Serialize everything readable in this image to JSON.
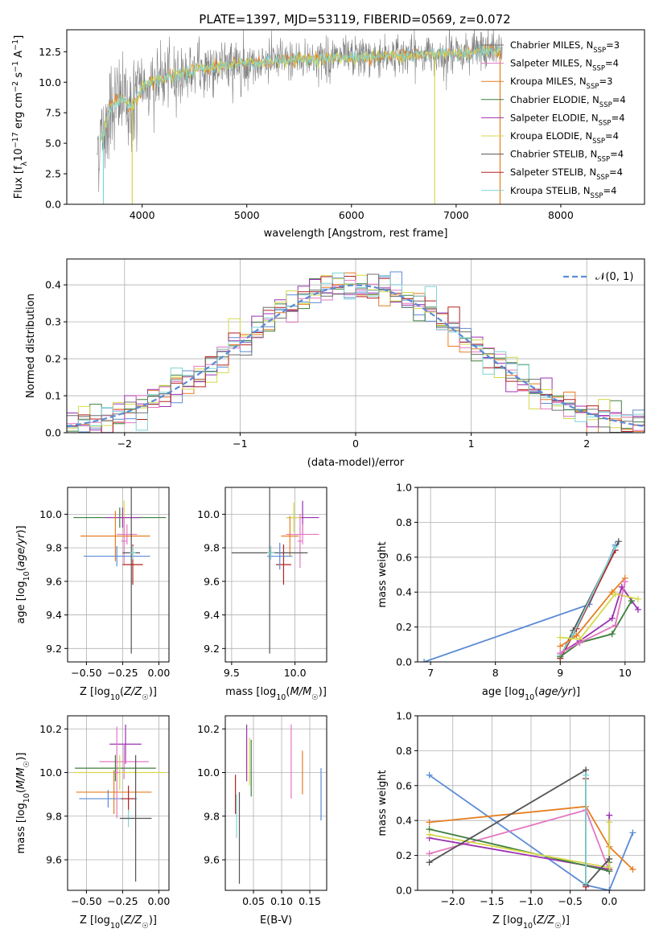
{
  "figure": {
    "title": "PLATE=1397, MJD=53119, FIBERID=0569, z=0.072"
  },
  "series_colors": [
    "#6f6f6f",
    "#e377c2",
    "#e67e22",
    "#3f7f3f",
    "#9b30b0",
    "#d4d94a",
    "#555555",
    "#b22222",
    "#7fd4d4",
    "#5b8bd6"
  ],
  "chart_data": [
    {
      "id": "spectrum",
      "type": "line",
      "xlabel": "wavelength [Angstrom, rest frame]",
      "ylabel": "Flux [f_λ 10^-17 erg cm^-2 s^-1 A^-1]",
      "xlim": [
        3280,
        8800
      ],
      "ylim": [
        0,
        14.3
      ],
      "xticks": [
        4000,
        5000,
        6000,
        7000,
        8000
      ],
      "yticks": [
        0.0,
        2.5,
        5.0,
        7.5,
        10.0,
        12.5
      ],
      "legend": [
        {
          "label": "Chabrier MILES, N_SSP=3",
          "color": "#6f6f6f"
        },
        {
          "label": "Salpeter MILES, N_SSP=4",
          "color": "#e377c2"
        },
        {
          "label": "Kroupa MILES, N_SSP=3",
          "color": "#e67e22"
        },
        {
          "label": "Chabrier ELODIE, N_SSP=4",
          "color": "#3f7f3f"
        },
        {
          "label": "Salpeter ELODIE, N_SSP=4",
          "color": "#9b30b0"
        },
        {
          "label": "Kroupa ELODIE, N_SSP=4",
          "color": "#d4d94a"
        },
        {
          "label": "Chabrier STELIB, N_SSP=4",
          "color": "#555555"
        },
        {
          "label": "Salpeter STELIB, N_SSP=4",
          "color": "#b22222"
        },
        {
          "label": "Kroupa STELIB, N_SSP=4",
          "color": "#7fd4d4"
        }
      ],
      "legend_position": "upper right",
      "observed_trend": {
        "x": [
          3580,
          3650,
          3700,
          3800,
          3900,
          3950,
          4000,
          4100,
          4300,
          4500,
          4800,
          5200,
          5600,
          6000,
          6400,
          6800,
          7200,
          7420
        ],
        "y": [
          4.8,
          6.2,
          8.2,
          8.6,
          7.9,
          8.7,
          9.6,
          10.0,
          10.5,
          11.0,
          11.4,
          11.7,
          11.9,
          12.0,
          12.2,
          12.3,
          12.5,
          12.6
        ]
      },
      "dips": [
        {
          "x": 3630,
          "y": 0.0,
          "color": "#7fd4d4"
        },
        {
          "x": 3905,
          "y": 0.0,
          "color": "#d4d94a"
        },
        {
          "x": 6795,
          "y": 0.0,
          "color": "#d4d94a"
        },
        {
          "x": 7420,
          "y": 0.0,
          "color": "#e67e22"
        }
      ]
    },
    {
      "id": "residual-histogram",
      "type": "bar",
      "xlabel": "(data-model)/error",
      "ylabel": "Normed distribution",
      "xlim": [
        -2.5,
        2.5
      ],
      "ylim": [
        0,
        0.47
      ],
      "xticks": [
        -2,
        -1,
        0,
        1,
        2
      ],
      "yticks": [
        0.0,
        0.1,
        0.2,
        0.3,
        0.4
      ],
      "grid": true,
      "bin_width": 0.1,
      "legend": [
        {
          "label": "𝒩(0, 1)",
          "color": "#5b8bd6",
          "style": "dashed"
        }
      ],
      "legend_position": "upper right"
    },
    {
      "id": "age-vs-Z",
      "type": "scatter",
      "xlabel": "Z [log10(Z/Z☉)]",
      "ylabel": "age [log10(age/yr)]",
      "xlim": [
        -0.63,
        0.07
      ],
      "ylim": [
        9.12,
        10.16
      ],
      "xticks": [
        -0.5,
        -0.25,
        0.0
      ],
      "xticklabels": [
        "−0.50",
        "−0.25",
        "0.00"
      ],
      "yticks": [
        9.2,
        9.4,
        9.6,
        9.8,
        10.0
      ],
      "grid": true,
      "points": [
        {
          "x": -0.27,
          "y": 9.98,
          "xerr": 0.32,
          "yerr": 0.06,
          "color": "#3f7f3f"
        },
        {
          "x": -0.24,
          "y": 9.98,
          "xerr": 0.07,
          "yerr": 0.1,
          "color": "#d4d94a"
        },
        {
          "x": -0.25,
          "y": 9.98,
          "xerr": 0.12,
          "yerr": 0.06,
          "color": "#9b30b0"
        },
        {
          "x": -0.22,
          "y": 9.88,
          "xerr": 0.07,
          "yerr": 0.06,
          "color": "#e377c2"
        },
        {
          "x": -0.3,
          "y": 9.87,
          "xerr": 0.24,
          "yerr": 0.15,
          "color": "#e67e22"
        },
        {
          "x": -0.24,
          "y": 9.84,
          "xerr": 0.02,
          "yerr": 0.14,
          "color": "#e377c2"
        },
        {
          "x": -0.29,
          "y": 9.75,
          "xerr": 0.23,
          "yerr": 0.06,
          "color": "#5b8bd6"
        },
        {
          "x": -0.19,
          "y": 9.77,
          "xerr": 0.06,
          "yerr": 0.6,
          "color": "#555555"
        },
        {
          "x": -0.18,
          "y": 9.7,
          "xerr": 0.07,
          "yerr": 0.12,
          "color": "#b22222"
        },
        {
          "x": -0.18,
          "y": 9.77,
          "xerr": 0.02,
          "yerr": 0.04,
          "color": "#7fd4d4"
        }
      ]
    },
    {
      "id": "age-vs-mass",
      "type": "scatter",
      "xlabel": "mass [log10(M/M☉)]",
      "ylabel": "",
      "xlim": [
        9.45,
        10.25
      ],
      "ylim": [
        9.12,
        10.16
      ],
      "xticks": [
        9.5,
        10.0
      ],
      "xticklabels": [
        "9.5",
        "10.0"
      ],
      "yticks": [
        9.2,
        9.4,
        9.6,
        9.8,
        10.0
      ],
      "grid": true,
      "points": [
        {
          "x": 10.06,
          "y": 9.98,
          "xerr": 0.13,
          "yerr": 0.1,
          "color": "#9b30b0"
        },
        {
          "x": 9.99,
          "y": 9.98,
          "xerr": 0.06,
          "yerr": 0.09,
          "color": "#d4d94a"
        },
        {
          "x": 10.06,
          "y": 9.88,
          "xerr": 0.13,
          "yerr": 0.06,
          "color": "#e377c2"
        },
        {
          "x": 10.04,
          "y": 9.84,
          "xerr": 0.02,
          "yerr": 0.16,
          "color": "#e377c2"
        },
        {
          "x": 9.96,
          "y": 9.87,
          "xerr": 0.07,
          "yerr": 0.12,
          "color": "#e67e22"
        },
        {
          "x": 9.8,
          "y": 9.77,
          "xerr": 0.3,
          "yerr": 0.6,
          "color": "#555555"
        },
        {
          "x": 9.91,
          "y": 9.7,
          "xerr": 0.06,
          "yerr": 0.12,
          "color": "#b22222"
        },
        {
          "x": 9.88,
          "y": 9.75,
          "xerr": 0.1,
          "yerr": 0.08,
          "color": "#5b8bd6"
        },
        {
          "x": 9.81,
          "y": 9.77,
          "xerr": 0.03,
          "yerr": 0.04,
          "color": "#7fd4d4"
        }
      ]
    },
    {
      "id": "mass-weight-vs-age",
      "type": "line",
      "xlabel": "age [log10(age/yr)]",
      "ylabel": "mass weight",
      "xlim": [
        6.8,
        10.3
      ],
      "ylim": [
        0,
        1.0
      ],
      "xticks": [
        7,
        8,
        9,
        10
      ],
      "yticks": [
        0.0,
        0.2,
        0.4,
        0.6,
        0.8,
        1.0
      ],
      "grid": true,
      "series": [
        {
          "color": "#5b8bd6",
          "x": [
            6.9,
            9.45,
            9.85
          ],
          "y": [
            0.0,
            0.33,
            0.67
          ]
        },
        {
          "color": "#555555",
          "x": [
            9.0,
            9.2,
            9.9
          ],
          "y": [
            0.03,
            0.18,
            0.69
          ]
        },
        {
          "color": "#b22222",
          "x": [
            9.0,
            9.25,
            9.85
          ],
          "y": [
            0.02,
            0.19,
            0.64
          ]
        },
        {
          "color": "#7fd4d4",
          "x": [
            9.0,
            9.2,
            9.85
          ],
          "y": [
            0.04,
            0.16,
            0.66
          ]
        },
        {
          "color": "#e67e22",
          "x": [
            9.0,
            9.25,
            9.8,
            10.0
          ],
          "y": [
            0.09,
            0.15,
            0.4,
            0.48
          ]
        },
        {
          "color": "#9b30b0",
          "x": [
            9.0,
            9.3,
            9.8,
            9.95,
            10.2
          ],
          "y": [
            0.05,
            0.12,
            0.25,
            0.43,
            0.3
          ]
        },
        {
          "color": "#3f7f3f",
          "x": [
            9.0,
            9.3,
            9.8,
            10.1
          ],
          "y": [
            0.03,
            0.11,
            0.16,
            0.35
          ]
        },
        {
          "color": "#d4d94a",
          "x": [
            9.0,
            9.3,
            9.85,
            10.2
          ],
          "y": [
            0.14,
            0.13,
            0.39,
            0.36
          ]
        },
        {
          "color": "#e377c2",
          "x": [
            9.0,
            9.3,
            9.85,
            10.0
          ],
          "y": [
            0.05,
            0.11,
            0.21,
            0.46
          ]
        }
      ]
    },
    {
      "id": "mass-vs-Z",
      "type": "scatter",
      "xlabel": "Z [log10(Z/Z☉)]",
      "ylabel": "mass [log10(M/M☉)]",
      "xlim": [
        -0.63,
        0.07
      ],
      "ylim": [
        9.46,
        10.26
      ],
      "xticks": [
        -0.5,
        -0.25,
        0.0
      ],
      "xticklabels": [
        "−0.50",
        "−0.25",
        "0.00"
      ],
      "yticks": [
        9.6,
        9.8,
        10.0,
        10.2
      ],
      "grid": true,
      "points": [
        {
          "x": -0.23,
          "y": 10.13,
          "xerr": 0.11,
          "yerr": 0.09,
          "color": "#9b30b0"
        },
        {
          "x": -0.24,
          "y": 10.05,
          "xerr": 0.17,
          "yerr": 0.08,
          "color": "#e377c2"
        },
        {
          "x": -0.3,
          "y": 10.02,
          "xerr": 0.28,
          "yerr": 0.06,
          "color": "#3f7f3f"
        },
        {
          "x": -0.27,
          "y": 10.0,
          "xerr": 0.32,
          "yerr": 0.08,
          "color": "#d4d94a"
        },
        {
          "x": -0.31,
          "y": 9.91,
          "xerr": 0.26,
          "yerr": 0.1,
          "color": "#e67e22"
        },
        {
          "x": -0.35,
          "y": 9.88,
          "xerr": 0.2,
          "yerr": 0.04,
          "color": "#5b8bd6"
        },
        {
          "x": -0.21,
          "y": 9.88,
          "xerr": 0.05,
          "yerr": 0.06,
          "color": "#b22222"
        },
        {
          "x": -0.21,
          "y": 9.79,
          "xerr": 0.05,
          "yerr": 0.04,
          "color": "#7fd4d4"
        },
        {
          "x": -0.16,
          "y": 9.79,
          "xerr": 0.11,
          "yerr": 0.29,
          "color": "#555555"
        },
        {
          "x": -0.29,
          "y": 10.0,
          "xerr": 0.02,
          "yerr": 0.21,
          "color": "#e377c2"
        }
      ]
    },
    {
      "id": "mass-vs-EBV",
      "type": "scatter",
      "xlabel": "E(B-V)",
      "ylabel": "",
      "xlim": [
        0.0,
        0.18
      ],
      "ylim": [
        9.46,
        10.26
      ],
      "xticks": [
        0.05,
        0.1,
        0.15
      ],
      "xticklabels": [
        "0.05",
        "0.10",
        "0.15"
      ],
      "yticks": [
        9.6,
        9.8,
        10.0,
        10.2
      ],
      "grid": true,
      "points": [
        {
          "x": 0.018,
          "y": 9.9,
          "yerr": 0.09,
          "color": "#b22222"
        },
        {
          "x": 0.02,
          "y": 9.8,
          "yerr": 0.1,
          "color": "#7fd4d4"
        },
        {
          "x": 0.025,
          "y": 9.7,
          "yerr": 0.21,
          "color": "#555555"
        },
        {
          "x": 0.038,
          "y": 10.09,
          "yerr": 0.13,
          "color": "#9b30b0"
        },
        {
          "x": 0.043,
          "y": 10.05,
          "yerr": 0.11,
          "color": "#d4d94a"
        },
        {
          "x": 0.046,
          "y": 10.02,
          "yerr": 0.13,
          "color": "#3f7f3f"
        },
        {
          "x": 0.117,
          "y": 10.05,
          "yerr": 0.17,
          "color": "#e377c2"
        },
        {
          "x": 0.137,
          "y": 10.0,
          "yerr": 0.1,
          "color": "#e67e22"
        },
        {
          "x": 0.17,
          "y": 9.9,
          "yerr": 0.12,
          "color": "#5b8bd6"
        }
      ]
    },
    {
      "id": "mass-weight-vs-Z",
      "type": "line",
      "xlabel": "Z [log10(Z/Z☉)]",
      "ylabel": "mass weight",
      "xlim": [
        -2.45,
        0.45
      ],
      "ylim": [
        0,
        1.0
      ],
      "xticks": [
        -2.0,
        -1.5,
        -1.0,
        -0.5,
        0.0
      ],
      "xticklabels": [
        "−2.0",
        "−1.5",
        "−1.0",
        "−0.5",
        "0.0"
      ],
      "yticks": [
        0.0,
        0.2,
        0.4,
        0.6,
        0.8,
        1.0
      ],
      "grid": true,
      "series": [
        {
          "color": "#5b8bd6",
          "x": [
            -2.3,
            -0.3,
            0.0,
            0.3
          ],
          "y": [
            0.66,
            0.03,
            0.0,
            0.33
          ]
        },
        {
          "color": "#e67e22",
          "x": [
            -2.3,
            -0.3,
            0.0,
            0.3
          ],
          "y": [
            0.39,
            0.48,
            0.25,
            0.12
          ]
        },
        {
          "color": "#e377c2",
          "x": [
            -2.3,
            -0.3,
            0.0
          ],
          "y": [
            0.21,
            0.46,
            0.11
          ]
        },
        {
          "color": "#9b30b0",
          "x": [
            -2.3,
            0.0,
            0.0
          ],
          "y": [
            0.3,
            0.12,
            0.43
          ]
        },
        {
          "color": "#3f7f3f",
          "x": [
            -2.3,
            0.0,
            0.0
          ],
          "y": [
            0.35,
            0.11,
            0.16
          ]
        },
        {
          "color": "#d4d94a",
          "x": [
            -2.3,
            0.0,
            0.0
          ],
          "y": [
            0.32,
            0.13,
            0.39
          ]
        },
        {
          "color": "#555555",
          "x": [
            -2.3,
            -0.3,
            -0.3,
            0.0
          ],
          "y": [
            0.16,
            0.69,
            0.03,
            0.18
          ]
        },
        {
          "color": "#b22222",
          "x": [
            -0.3,
            -0.3
          ],
          "y": [
            0.64,
            0.02
          ]
        },
        {
          "color": "#7fd4d4",
          "x": [
            -0.3,
            -0.3
          ],
          "y": [
            0.66,
            0.04
          ]
        }
      ]
    }
  ]
}
